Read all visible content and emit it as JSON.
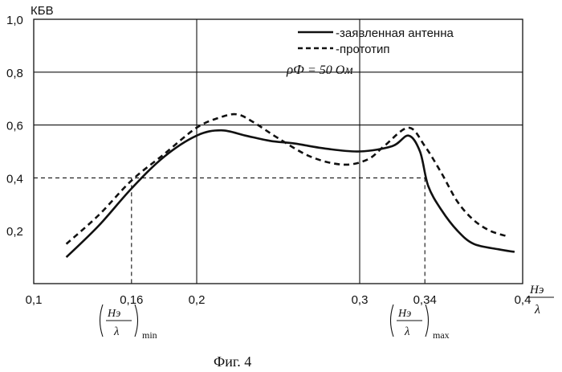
{
  "chart_data": {
    "type": "line",
    "ylabel": "КБВ",
    "xlabel": {
      "top": "Hэ",
      "bottom": "λ"
    },
    "xlim": [
      0.1,
      0.4
    ],
    "ylim": [
      0.0,
      1.0
    ],
    "x_ticks": [
      "0,1",
      "0,16",
      "0,2",
      "0,3",
      "0,34",
      "0,4"
    ],
    "x_tick_values": [
      0.1,
      0.16,
      0.2,
      0.3,
      0.34,
      0.4
    ],
    "y_ticks": [
      "0,2",
      "0,4",
      "0,6",
      "0,8",
      "1,0"
    ],
    "y_tick_values": [
      0.2,
      0.4,
      0.6,
      0.8,
      1.0
    ],
    "grid_x": [
      0.2,
      0.3
    ],
    "grid_y": [
      0.4,
      0.6,
      0.8
    ],
    "reference": {
      "y": 0.4,
      "x_min": 0.16,
      "x_max": 0.34
    },
    "series": [
      {
        "name": "-заявленная антенна",
        "style": "solid",
        "x": [
          0.12,
          0.14,
          0.16,
          0.18,
          0.2,
          0.215,
          0.23,
          0.245,
          0.26,
          0.28,
          0.3,
          0.32,
          0.33,
          0.337,
          0.342,
          0.35,
          0.36,
          0.37,
          0.385,
          0.395
        ],
        "y": [
          0.1,
          0.22,
          0.36,
          0.48,
          0.56,
          0.58,
          0.56,
          0.54,
          0.53,
          0.51,
          0.5,
          0.52,
          0.56,
          0.5,
          0.37,
          0.28,
          0.2,
          0.15,
          0.13,
          0.12
        ]
      },
      {
        "name": "-прототип",
        "style": "dashed",
        "x": [
          0.12,
          0.14,
          0.16,
          0.18,
          0.2,
          0.215,
          0.225,
          0.235,
          0.25,
          0.27,
          0.29,
          0.305,
          0.315,
          0.33,
          0.34,
          0.35,
          0.36,
          0.37,
          0.38,
          0.39
        ],
        "y": [
          0.15,
          0.26,
          0.39,
          0.49,
          0.59,
          0.63,
          0.64,
          0.61,
          0.55,
          0.48,
          0.45,
          0.47,
          0.52,
          0.59,
          0.52,
          0.42,
          0.31,
          0.24,
          0.2,
          0.18
        ]
      }
    ],
    "legend_position": "top-right",
    "annotation": {
      "lhs": "ρФ",
      "rhs": "= 50 Ом"
    },
    "bracket_labels": {
      "min": "min",
      "max": "max",
      "numerator": "Hэ",
      "denominator": "λ"
    },
    "caption": "Фиг. 4",
    "colors": {
      "line": "#111111",
      "background": "#ffffff"
    }
  }
}
